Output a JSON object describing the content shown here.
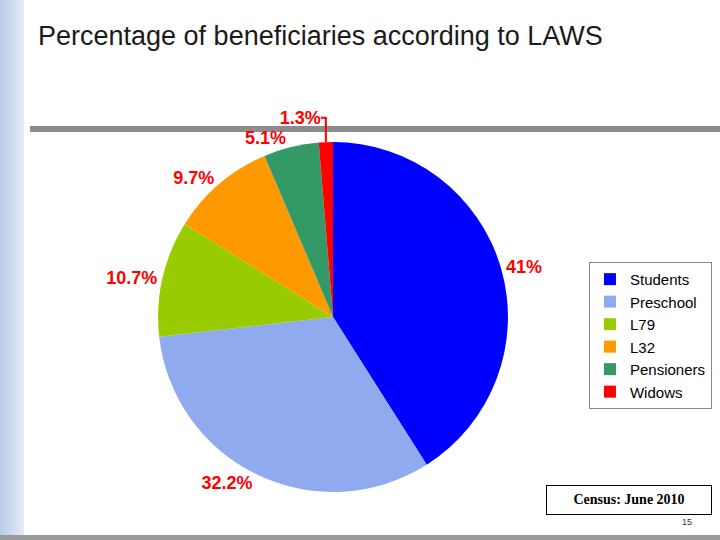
{
  "chart_data": {
    "type": "pie",
    "title": "Percentage of beneficiaries according to LAWS",
    "categories": [
      "Students",
      "Preschool",
      "L79",
      "L32",
      "Pensioners",
      "Widows"
    ],
    "values": [
      41,
      32.2,
      10.7,
      9.7,
      5.1,
      1.3
    ],
    "value_labels": [
      "41%",
      "32.2%",
      "10.7%",
      "9.7%",
      "5.1%",
      "1.3%"
    ],
    "colors": [
      "#0000ff",
      "#8faaee",
      "#99cc00",
      "#ff9900",
      "#339966",
      "#ff0000"
    ],
    "data_labels": true,
    "legend": "right",
    "annotations": [
      "Census: June 2010"
    ],
    "page_number": 15
  }
}
